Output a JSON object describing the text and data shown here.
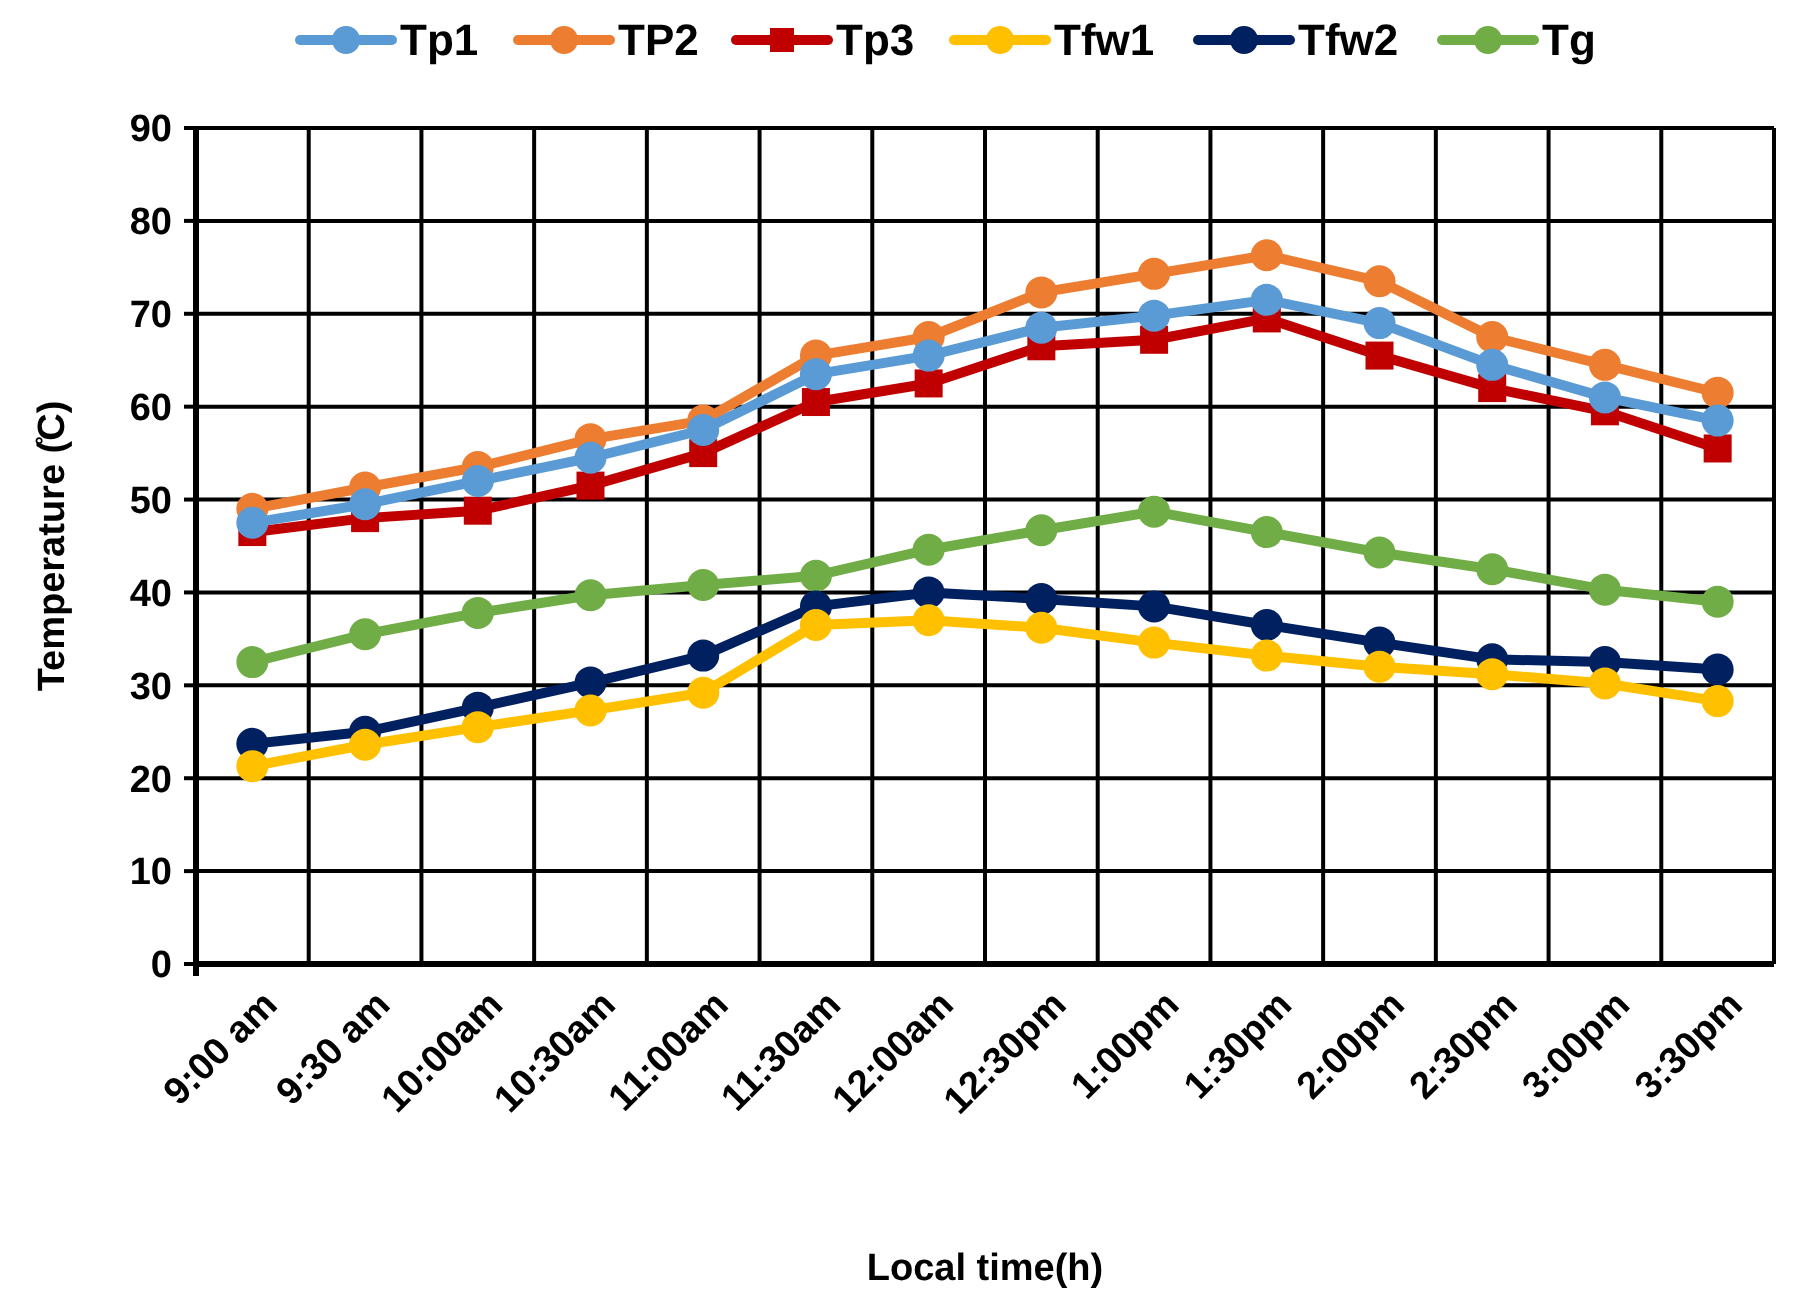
{
  "chart_data": {
    "type": "line",
    "xlabel": "Local time(h)",
    "ylabel": "Temperature (̊C)",
    "categories": [
      "9:00 am",
      "9:30 am",
      "10:00am",
      "10:30am",
      "11:00am",
      "11:30am",
      "12:00am",
      "12:30pm",
      "1:00pm",
      "1:30pm",
      "2:00pm",
      "2:30pm",
      "3:00pm",
      "3:30pm"
    ],
    "ylim": [
      0,
      90
    ],
    "yticks": [
      0,
      10,
      20,
      30,
      40,
      50,
      60,
      70,
      80,
      90
    ],
    "grid": true,
    "legend": "top",
    "marker": "circle",
    "series": [
      {
        "name": "Tp1",
        "color": "#5b9bd5",
        "values": [
          47.5,
          49.5,
          52,
          54.5,
          57.5,
          63.5,
          65.5,
          68.5,
          69.8,
          71.5,
          69,
          64.5,
          61,
          58.5
        ]
      },
      {
        "name": "TP2",
        "color": "#ed7d31",
        "values": [
          49,
          51.3,
          53.5,
          56.5,
          58.5,
          65.5,
          67.5,
          72.3,
          74.3,
          76.3,
          73.5,
          67.5,
          64.5,
          61.5
        ]
      },
      {
        "name": "Tp3",
        "color": "#c00000",
        "marker": "square",
        "values": [
          46.5,
          48,
          48.8,
          51.5,
          55,
          60.5,
          62.5,
          66.5,
          67.2,
          69.5,
          65.5,
          62,
          59.5,
          55.5
        ]
      },
      {
        "name": "Tfw1",
        "color": "#ffc000",
        "values": [
          21.3,
          23.6,
          25.5,
          27.3,
          29.2,
          36.5,
          37,
          36.2,
          34.6,
          33.2,
          32,
          31.2,
          30.2,
          28.3
        ]
      },
      {
        "name": "Tfw2",
        "color": "#002060",
        "values": [
          23.7,
          25,
          27.6,
          30.3,
          33.2,
          38.5,
          40,
          39.3,
          38.5,
          36.5,
          34.6,
          32.8,
          32.5,
          31.7
        ]
      },
      {
        "name": "Tg",
        "color": "#70ad47",
        "values": [
          32.5,
          35.5,
          37.8,
          39.7,
          40.8,
          41.8,
          44.6,
          46.7,
          48.7,
          46.5,
          44.3,
          42.5,
          40.3,
          39
        ]
      }
    ]
  }
}
